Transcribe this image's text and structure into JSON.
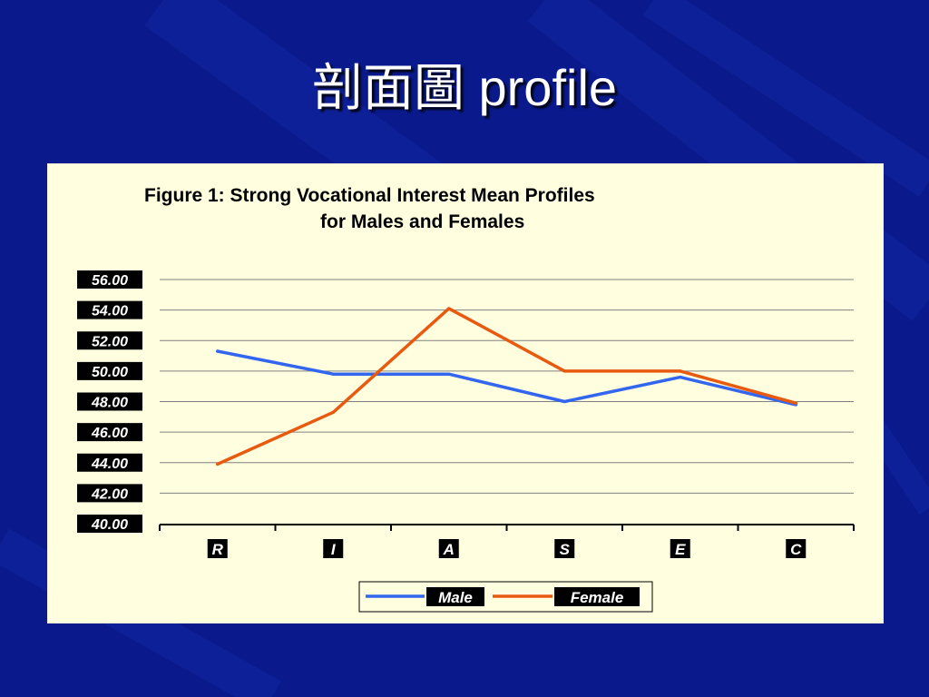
{
  "slide": {
    "title": "剖面圖 profile",
    "background_color": "#0a1a8c",
    "background_dark": "#07106a",
    "title_color": "#ffffff"
  },
  "colors": {
    "panel": "#ffffe0",
    "grid": "#808080",
    "axis": "#000000",
    "label_box": "#000000",
    "label_text": "#ffffff"
  },
  "chart_data": {
    "type": "line",
    "title": [
      "Figure 1:  Strong Vocational Interest Mean Profiles",
      "for Males and Females"
    ],
    "categories": [
      "R",
      "I",
      "A",
      "S",
      "E",
      "C"
    ],
    "ylim": [
      40,
      56
    ],
    "yticks": [
      "40.00",
      "42.00",
      "44.00",
      "46.00",
      "48.00",
      "50.00",
      "52.00",
      "54.00",
      "56.00"
    ],
    "grid": true,
    "legend_position": "bottom",
    "series": [
      {
        "name": "Male",
        "color": "#3366ee",
        "values": [
          51.3,
          49.8,
          49.8,
          48.0,
          49.6,
          47.8
        ]
      },
      {
        "name": "Female",
        "color": "#e85a10",
        "values": [
          43.9,
          47.3,
          54.1,
          50.0,
          50.0,
          47.9
        ]
      }
    ]
  }
}
